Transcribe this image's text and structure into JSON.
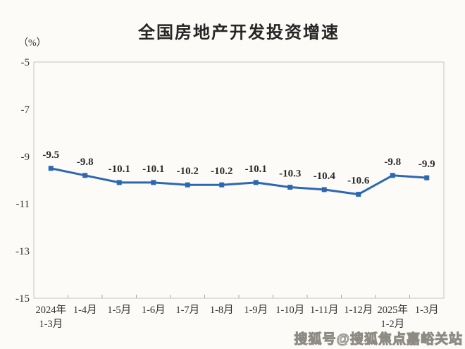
{
  "page": {
    "background": "#fcfbf8",
    "border_color": "#c6c6c6",
    "tick_color": "#a8a8a8"
  },
  "chart_data": {
    "type": "line",
    "title": "全国房地产开发投资增速",
    "ylabel": "（%）",
    "xlabel": "",
    "categories": [
      "2024年\n1-3月",
      "1-4月",
      "1-5月",
      "1-6月",
      "1-7月",
      "1-8月",
      "1-9月",
      "1-10月",
      "1-11月",
      "1-12月",
      "2025年\n1-2月",
      "1-3月"
    ],
    "values": [
      -9.5,
      -9.8,
      -10.1,
      -10.1,
      -10.2,
      -10.2,
      -10.1,
      -10.3,
      -10.4,
      -10.6,
      -9.8,
      -9.9
    ],
    "data_labels": [
      "-9.5",
      "-9.8",
      "-10.1",
      "-10.1",
      "-10.2",
      "-10.2",
      "-10.1",
      "-10.3",
      "-10.4",
      "-10.6",
      "-9.8",
      "-9.9"
    ],
    "ylim": [
      -15,
      -5
    ],
    "yticks": [
      -5,
      -7,
      -9,
      -11,
      -13,
      -15
    ],
    "grid": false,
    "legend_position": "none",
    "line_color": "#2c68b2",
    "marker": "square"
  },
  "watermark": {
    "text": "搜狐号@搜狐焦点嘉峪关站"
  }
}
